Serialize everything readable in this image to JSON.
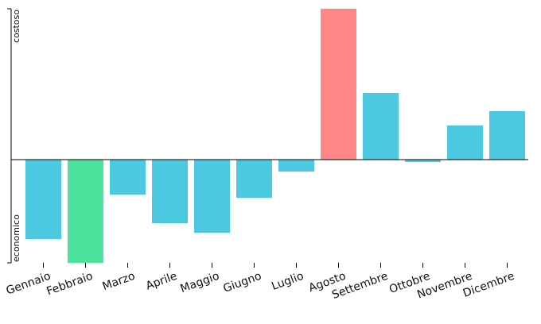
{
  "chart_data": {
    "type": "bar",
    "categories": [
      "Gennaio",
      "Febbraio",
      "Marzo",
      "Aprile",
      "Maggio",
      "Giugno",
      "Luglio",
      "Agosto",
      "Settembre",
      "Ottobre",
      "Novembre",
      "Dicembre"
    ],
    "values": [
      -100,
      -130,
      -44,
      -80,
      -92,
      -48,
      -15,
      190,
      84,
      -3,
      43,
      61
    ],
    "ylim": [
      -130,
      190
    ],
    "baseline": 0,
    "y_axis_labels": {
      "top": "costoso",
      "bottom": "economico"
    },
    "grid": false,
    "legend": "none",
    "colors": {
      "default": "#4cc9e0",
      "min": "#4de39e",
      "max": "#ff8787",
      "axis": "#000000"
    }
  }
}
